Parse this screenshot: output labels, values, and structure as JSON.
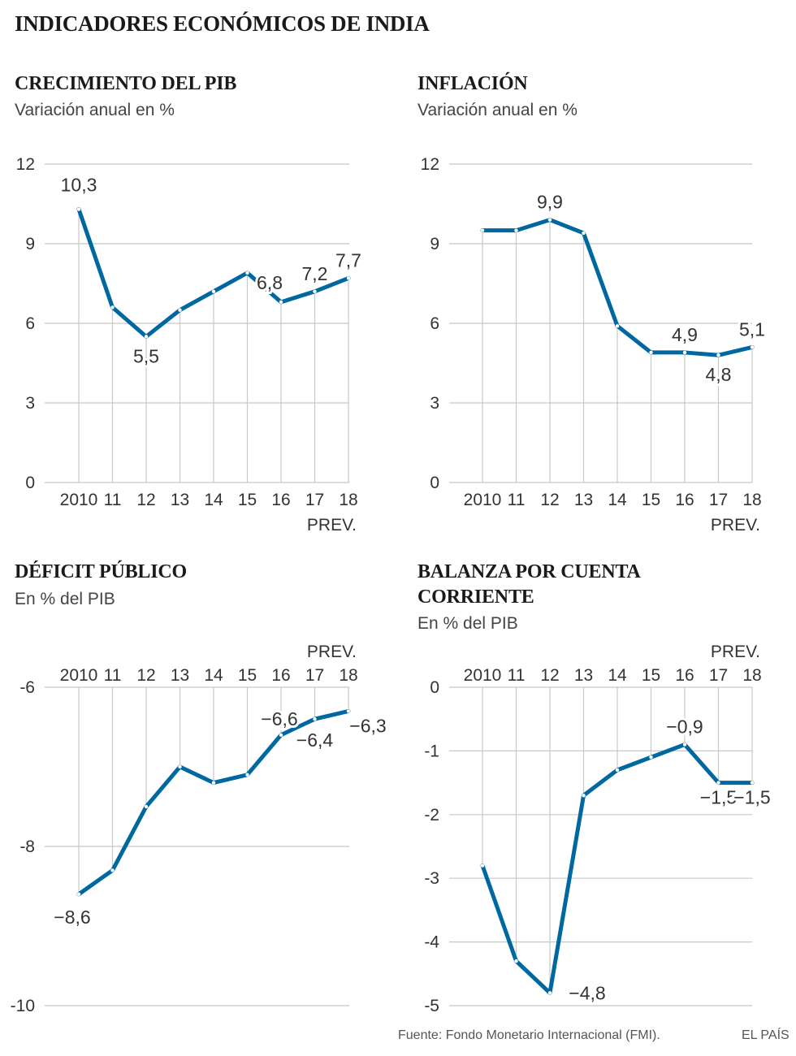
{
  "title": "INDICADORES ECONÓMICOS DE INDIA",
  "source": "Fuente: Fondo Monetario Internacional (FMI).",
  "brand": "EL PAÍS",
  "colors": {
    "line": "#0068a0",
    "grid": "#c8c8c8",
    "text": "#333333"
  },
  "chart_data": [
    {
      "id": "pib",
      "type": "line",
      "title": "CRECIMIENTO DEL PIB",
      "subtitle": "Variación anual en %",
      "categories": [
        "2010",
        "11",
        "12",
        "13",
        "14",
        "15",
        "16",
        "17",
        "18"
      ],
      "forecast_label": "PREV.",
      "values": [
        10.3,
        6.6,
        5.5,
        6.5,
        7.2,
        7.9,
        6.8,
        7.2,
        7.7
      ],
      "ylim": [
        0,
        12
      ],
      "yticks": [
        "0",
        "3",
        "6",
        "9",
        "12"
      ],
      "ytick_values": [
        0,
        3,
        6,
        9,
        12
      ],
      "xaxis_position": "bottom",
      "grid": true,
      "data_labels": [
        {
          "index": 0,
          "text": "10,3"
        },
        {
          "index": 2,
          "text": "5,5"
        },
        {
          "index": 6,
          "text": "6,8"
        },
        {
          "index": 7,
          "text": "7,2"
        },
        {
          "index": 8,
          "text": "7,7"
        }
      ]
    },
    {
      "id": "inflacion",
      "type": "line",
      "title": "INFLACIÓN",
      "subtitle": "Variación anual en %",
      "categories": [
        "2010",
        "11",
        "12",
        "13",
        "14",
        "15",
        "16",
        "17",
        "18"
      ],
      "forecast_label": "PREV.",
      "values": [
        9.5,
        9.5,
        9.9,
        9.4,
        5.9,
        4.9,
        4.9,
        4.8,
        5.1
      ],
      "ylim": [
        0,
        12
      ],
      "yticks": [
        "0",
        "3",
        "6",
        "9",
        "12"
      ],
      "ytick_values": [
        0,
        3,
        6,
        9,
        12
      ],
      "xaxis_position": "bottom",
      "grid": true,
      "data_labels": [
        {
          "index": 2,
          "text": "9,9"
        },
        {
          "index": 6,
          "text": "4,9"
        },
        {
          "index": 7,
          "text": "4,8"
        },
        {
          "index": 8,
          "text": "5,1"
        }
      ]
    },
    {
      "id": "deficit",
      "type": "line",
      "title": "DÉFICIT PÚBLICO",
      "subtitle": "En % del PIB",
      "categories": [
        "2010",
        "11",
        "12",
        "13",
        "14",
        "15",
        "16",
        "17",
        "18"
      ],
      "forecast_label": "PREV.",
      "values": [
        -8.6,
        -8.3,
        -7.5,
        -7.0,
        -7.2,
        -7.1,
        -6.6,
        -6.4,
        -6.3
      ],
      "ylim": [
        -10,
        -6
      ],
      "yticks": [
        "-10",
        "-8",
        "-6"
      ],
      "ytick_values": [
        -10,
        -8,
        -6
      ],
      "xaxis_position": "top",
      "grid": true,
      "data_labels": [
        {
          "index": 0,
          "text": "−8,6"
        },
        {
          "index": 6,
          "text": "−6,6"
        },
        {
          "index": 7,
          "text": "−6,4"
        },
        {
          "index": 8,
          "text": "−6,3"
        }
      ]
    },
    {
      "id": "balanza",
      "type": "line",
      "title": "BALANZA POR CUENTA CORRIENTE",
      "subtitle": "En % del PIB",
      "categories": [
        "2010",
        "11",
        "12",
        "13",
        "14",
        "15",
        "16",
        "17",
        "18"
      ],
      "forecast_label": "PREV.",
      "values": [
        -2.8,
        -4.3,
        -4.8,
        -1.7,
        -1.3,
        -1.1,
        -0.9,
        -1.5,
        -1.5
      ],
      "ylim": [
        -5,
        0
      ],
      "yticks": [
        "-5",
        "-4",
        "-3",
        "-2",
        "-1",
        "0"
      ],
      "ytick_values": [
        -5,
        -4,
        -3,
        -2,
        -1,
        0
      ],
      "xaxis_position": "top",
      "grid": true,
      "data_labels": [
        {
          "index": 2,
          "text": "−4,8"
        },
        {
          "index": 6,
          "text": "−0,9"
        },
        {
          "index": 7,
          "text": "−1,5"
        },
        {
          "index": 8,
          "text": "−1,5"
        }
      ]
    }
  ]
}
